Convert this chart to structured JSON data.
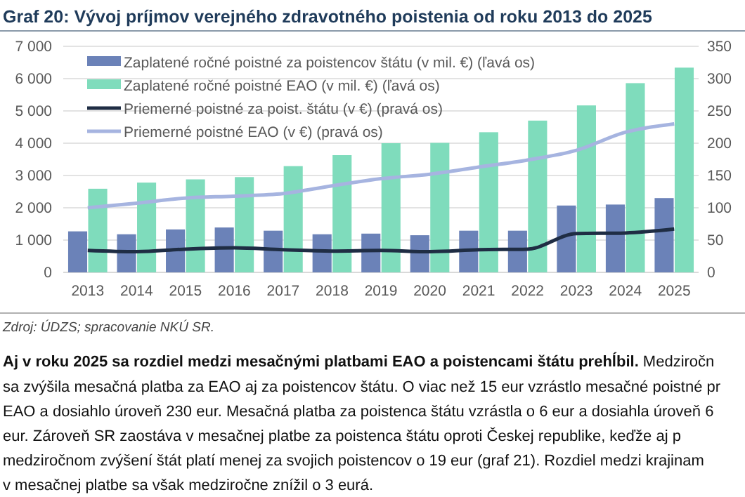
{
  "chart_data": {
    "type": "bar",
    "title": "Graf 20: Vývoj príjmov verejného zdravotného poistenia od roku 2013 do 2025",
    "categories": [
      "2013",
      "2014",
      "2015",
      "2016",
      "2017",
      "2018",
      "2019",
      "2020",
      "2021",
      "2022",
      "2023",
      "2024",
      "2025"
    ],
    "series": [
      {
        "name": "Zaplatené ročné poistné za poistencov štátu (v mil. €) (ľavá os)",
        "color": "#6b82b8",
        "values": [
          1270,
          1180,
          1330,
          1390,
          1290,
          1180,
          1200,
          1150,
          1290,
          1290,
          2070,
          2100,
          2300
        ]
      },
      {
        "name": "Zaplatené ročné poistné EAO (v mil. €) (ľavá os)",
        "color": "#7fdcbc",
        "values": [
          2590,
          2780,
          2880,
          2950,
          3290,
          3630,
          4000,
          4010,
          4340,
          4700,
          5170,
          5860,
          6340
        ]
      },
      {
        "name": "Priemerné poistné za poist. štátu (v €) (pravá os)",
        "type": "line",
        "axis": "y2",
        "color": "#1f2d44",
        "values": [
          34,
          32,
          36,
          38,
          35,
          33,
          34,
          32,
          35,
          36,
          60,
          61,
          67
        ]
      },
      {
        "name": "Priemerné poistné EAO (v €) (pravá os)",
        "type": "line",
        "axis": "y2",
        "color": "#a6b4e0",
        "values": [
          100,
          107,
          115,
          118,
          122,
          134,
          145,
          152,
          163,
          174,
          189,
          217,
          230
        ]
      }
    ],
    "ylim": [
      0,
      7000
    ],
    "yticks": [
      {
        "value": 0,
        "label": "0"
      },
      {
        "value": 1000,
        "label": "1 000"
      },
      {
        "value": 2000,
        "label": "2 000"
      },
      {
        "value": 3000,
        "label": "3 000"
      },
      {
        "value": 4000,
        "label": "4 000"
      },
      {
        "value": 5000,
        "label": "5 000"
      },
      {
        "value": 6000,
        "label": "6 000"
      },
      {
        "value": 7000,
        "label": "7 000"
      }
    ],
    "y2lim": [
      0,
      350
    ],
    "y2ticks": [
      0,
      50,
      100,
      150,
      200,
      250,
      300,
      350
    ],
    "grid": "y",
    "legend": "top left",
    "marker": "none",
    "line_style": "solid",
    "annotations": [
      "Zdroj: ÚDZS; spracovanie NKÚ SR.",
      "Aj v roku 2025 sa rozdiel medzi mesačnými platbami EAO a poistencami štátu prehĺbil.",
      "Medziročn",
      "sa zvýšila mesačná platba za EAO aj za poistencov štátu. O viac než 15 eur vzrástlo mesačné poistné pr",
      "EAO a dosiahlo úroveň 230 eur. Mesačná platba za poistenca štátu vzrástla o 6 eur a dosiahla úroveň 6",
      "eur. Zároveň SR zaostáva v mesačnej platbe za poistenca štátu oproti Českej republike, keďže aj p",
      "medziročnom zvýšení štát platí menej za svojich poistencov o 19 eur (graf 21). Rozdiel medzi krajinam",
      "v mesačnej platbe sa však medziročne znížil o 3 eurá."
    ]
  }
}
